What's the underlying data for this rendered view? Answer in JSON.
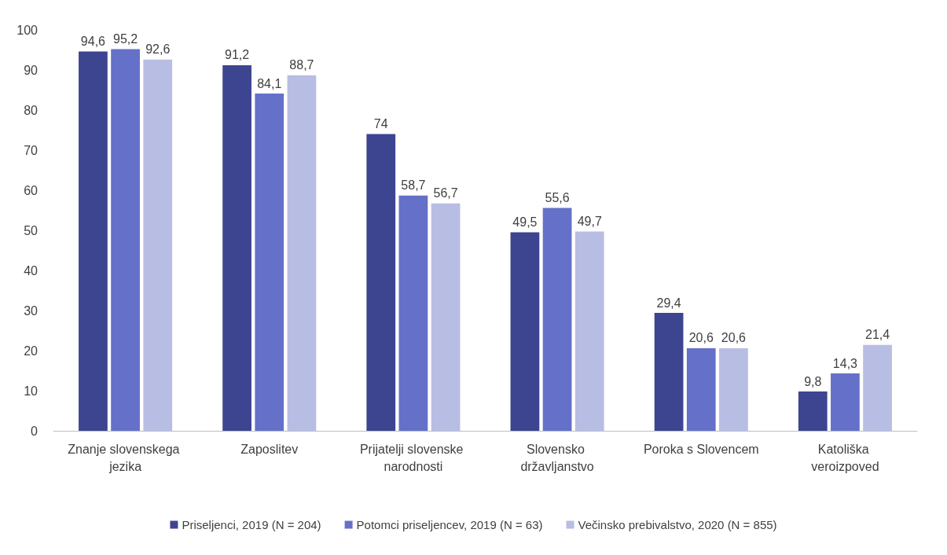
{
  "chart_data": {
    "type": "bar",
    "categories": [
      "Znanje slovenskega jezika",
      "Zaposlitev",
      "Prijatelji slovenske narodnosti",
      "Slovensko državljanstvo",
      "Poroka s Slovencem",
      "Katoliška veroizpoved"
    ],
    "series": [
      {
        "name": "Priseljenci, 2019 (N = 204)",
        "color": "#3d4591",
        "values": [
          94.6,
          91.2,
          74,
          49.5,
          29.4,
          9.8
        ],
        "value_labels": [
          "94,6",
          "91,2",
          "74",
          "49,5",
          "29,4",
          "9,8"
        ]
      },
      {
        "name": "Potomci priseljencev, 2019 (N = 63)",
        "color": "#6570c8",
        "values": [
          95.2,
          84.1,
          58.7,
          55.6,
          20.6,
          14.3
        ],
        "value_labels": [
          "95,2",
          "84,1",
          "58,7",
          "55,6",
          "20,6",
          "14,3"
        ]
      },
      {
        "name": "Večinsko prebivalstvo, 2020 (N = 855)",
        "color": "#b8bde3",
        "values": [
          92.6,
          88.7,
          56.7,
          49.7,
          20.6,
          21.4
        ],
        "value_labels": [
          "92,6",
          "88,7",
          "56,7",
          "49,7",
          "20,6",
          "21,4"
        ]
      }
    ],
    "ylim": [
      0,
      100
    ],
    "yticks": [
      0,
      10,
      20,
      30,
      40,
      50,
      60,
      70,
      80,
      90,
      100
    ],
    "grid": false,
    "legend": "bottom"
  }
}
